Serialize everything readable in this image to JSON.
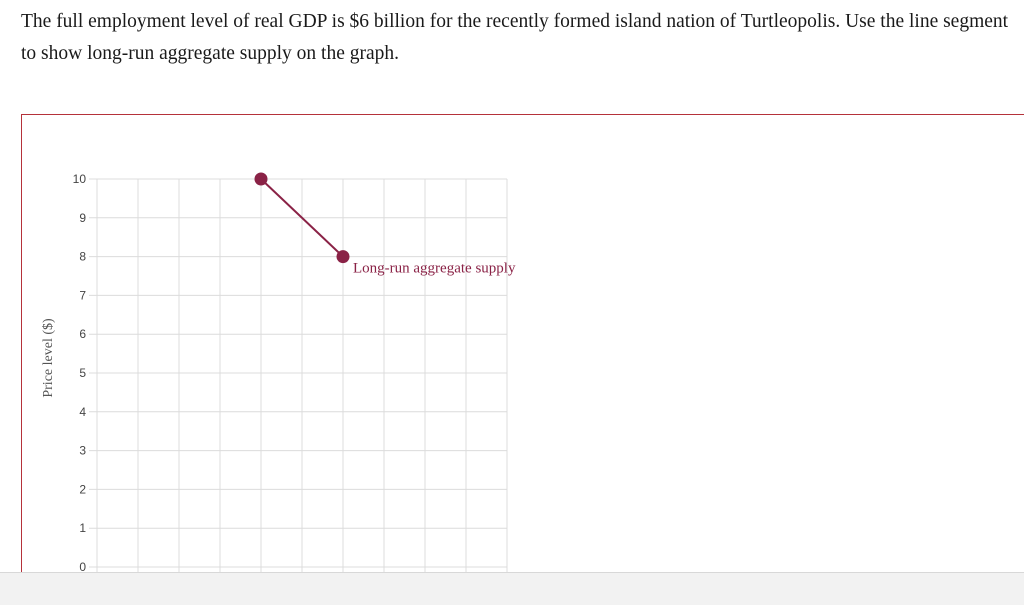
{
  "question": {
    "text": "The full employment level of real GDP is $6 billion for the recently formed island nation of Turtleopolis. Use the line segment to show long-run aggregate supply on the graph."
  },
  "chart_data": {
    "type": "line",
    "ylabel": "Price level ($)",
    "xlabel": "",
    "ylim": [
      0,
      10
    ],
    "yticks": [
      "0",
      "1",
      "2",
      "3",
      "4",
      "5",
      "6",
      "7",
      "8",
      "9",
      "10"
    ],
    "x_gridlines": 10,
    "grid": true,
    "series": [
      {
        "name": "Long-run aggregate supply",
        "color": "#8a2246",
        "points": [
          [
            4,
            10
          ],
          [
            6,
            8
          ]
        ]
      }
    ]
  }
}
